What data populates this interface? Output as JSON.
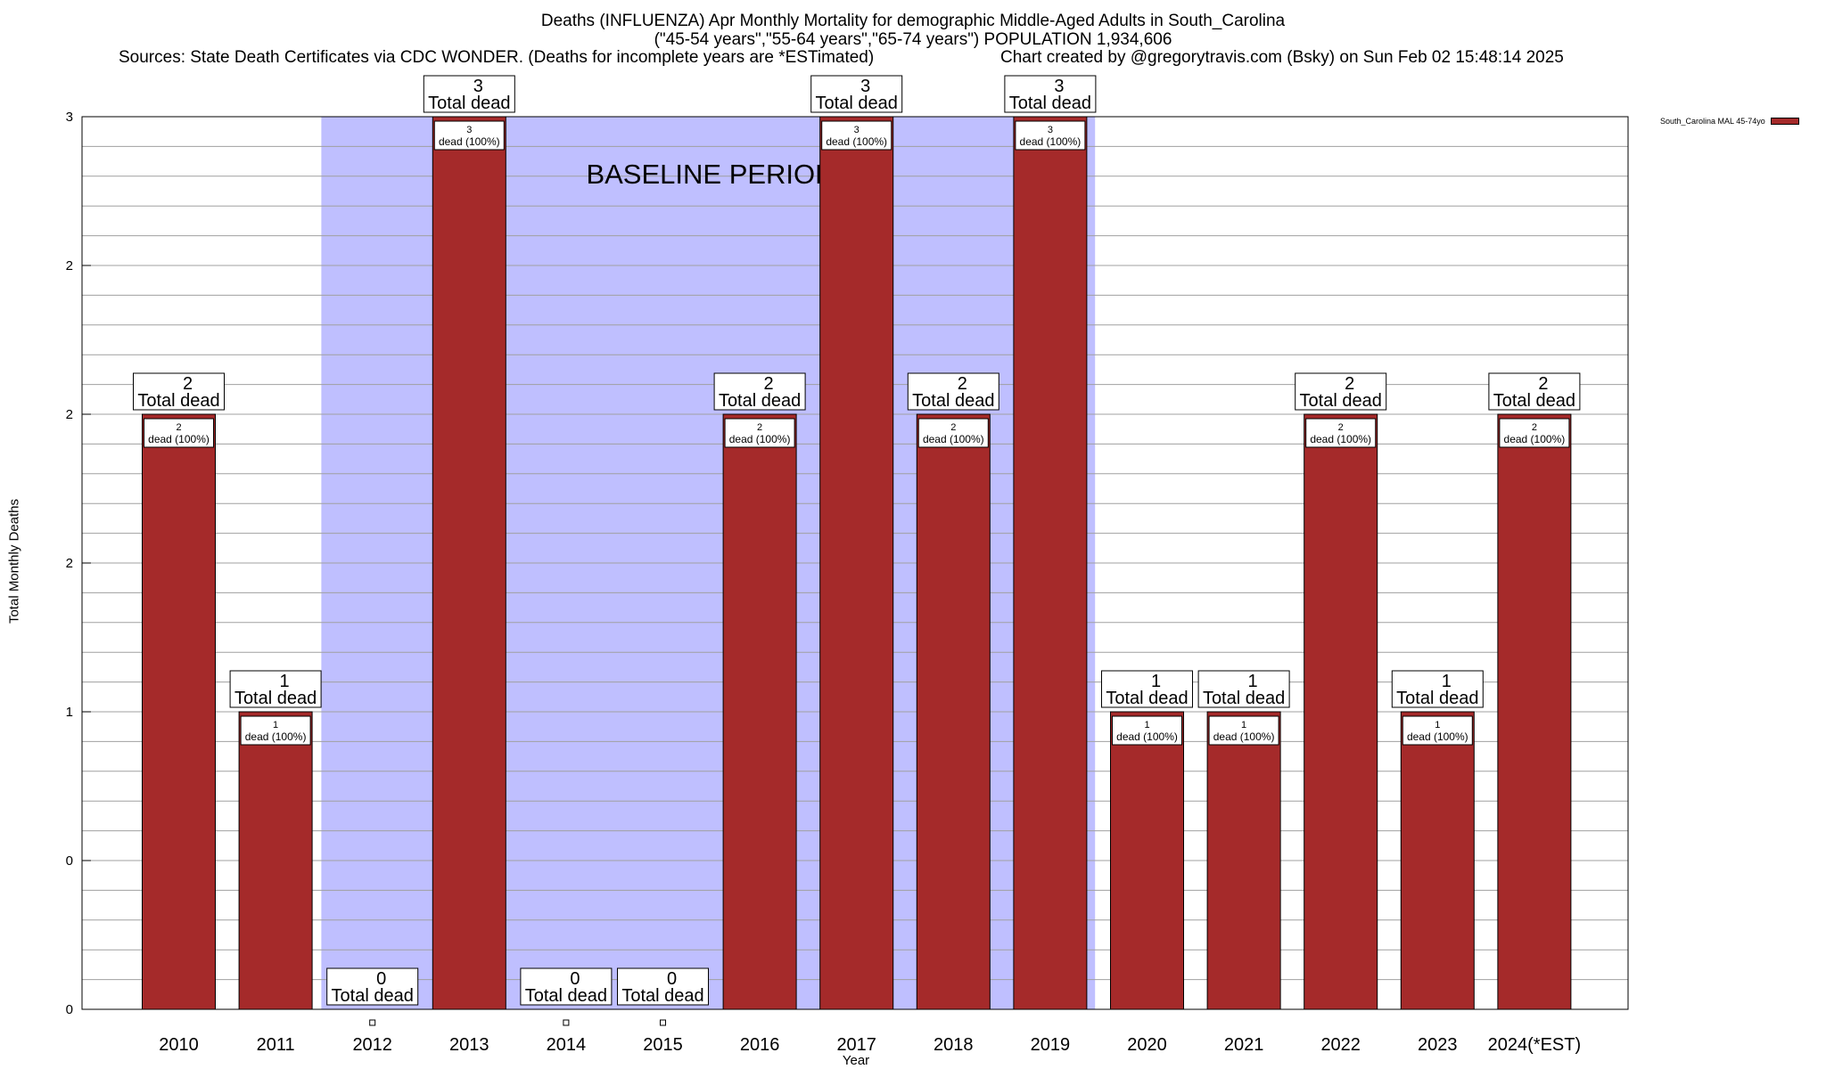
{
  "chart_data": {
    "type": "bar",
    "title": "Deaths (INFLUENZA) Apr Monthly Mortality for demographic Middle-Aged Adults in South_Carolina",
    "subtitle": "(\"45-54 years\",\"55-64 years\",\"65-74 years\") POPULATION 1,934,606",
    "sources": "Sources: State Death Certificates via CDC WONDER. (Deaths for incomplete years are *ESTimated)",
    "credit": "Chart created by @gregorytravis.com (Bsky) on Sun Feb 02 15:48:14 2025",
    "xlabel": "Year",
    "ylabel": "Total Monthly Deaths",
    "categories": [
      "2010",
      "2011",
      "2012",
      "2013",
      "2014",
      "2015",
      "2016",
      "2017",
      "2018",
      "2019",
      "2020",
      "2021",
      "2022",
      "2023",
      "2024(*EST)"
    ],
    "series": [
      {
        "name": "South_Carolina MAL 45-74yo",
        "color": "#a52a2a",
        "values": [
          2,
          1,
          0,
          3,
          0,
          0,
          2,
          3,
          2,
          3,
          1,
          1,
          2,
          1,
          2
        ]
      }
    ],
    "ylim": [
      0,
      3
    ],
    "yticks": [
      {
        "value": 0,
        "label": "0"
      },
      {
        "value": 0.5,
        "label": "0"
      },
      {
        "value": 1,
        "label": "1"
      },
      {
        "value": 1.5,
        "label": "2"
      },
      {
        "value": 2,
        "label": "2"
      },
      {
        "value": 2.5,
        "label": "2"
      },
      {
        "value": 3,
        "label": "3"
      }
    ],
    "total_label": "Total dead",
    "inner_label": "dead (100%)",
    "baseline": {
      "label": "BASELINE PERIOD",
      "from": "2012",
      "to": "2019",
      "color": "#bfbfff"
    },
    "legend_position": "top-right",
    "grid": true
  }
}
